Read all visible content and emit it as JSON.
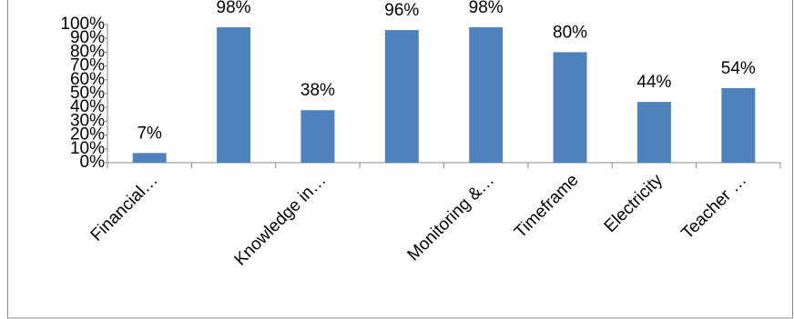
{
  "chart_data": {
    "type": "bar",
    "categories": [
      "Financial…",
      null,
      "Knowledge in…",
      null,
      "Monitoring &…",
      "Timeframe",
      "Electricity",
      "Teacher …"
    ],
    "values": [
      7,
      98,
      38,
      96,
      98,
      80,
      44,
      54
    ],
    "value_labels": [
      "7%",
      "98%",
      "38%",
      "96%",
      "98%",
      "80%",
      "44%",
      "54%"
    ],
    "color": "#4f81bd",
    "ylim": [
      0,
      100
    ],
    "yticks": [
      {
        "value": 0,
        "label": "0%"
      },
      {
        "value": 10,
        "label": "10%"
      },
      {
        "value": 20,
        "label": "20%"
      },
      {
        "value": 30,
        "label": "30%"
      },
      {
        "value": 40,
        "label": "40%"
      },
      {
        "value": 50,
        "label": "50%"
      },
      {
        "value": 60,
        "label": "60%"
      },
      {
        "value": 70,
        "label": "70%"
      },
      {
        "value": 80,
        "label": "80%"
      },
      {
        "value": 90,
        "label": "90%"
      },
      {
        "value": 100,
        "label": "100%"
      }
    ]
  }
}
